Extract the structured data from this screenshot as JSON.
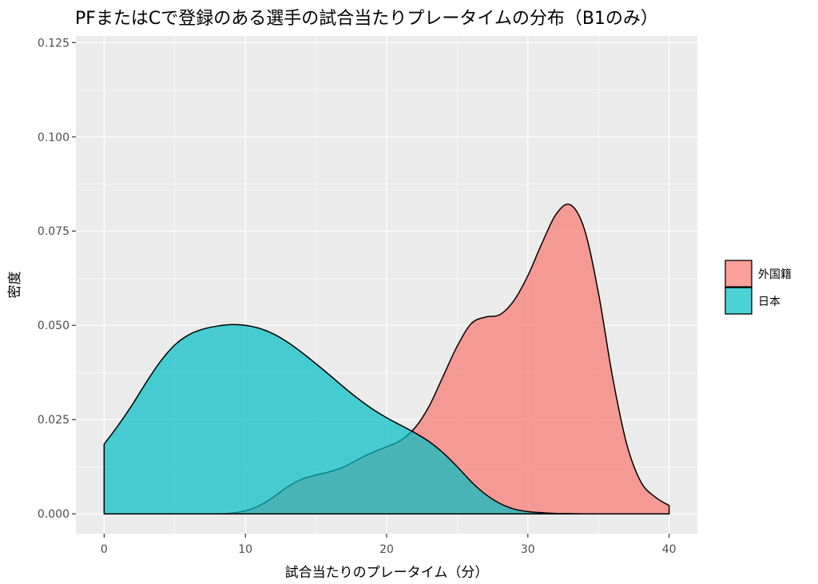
{
  "chart_data": {
    "type": "area",
    "title": "PFまたはCで登録のある選手の試合当たりプレータイムの分布（B1のみ）",
    "xlabel": "試合当たりのプレータイム（分）",
    "ylabel": "密度",
    "xlim": [
      -2,
      42
    ],
    "ylim": [
      -0.00525,
      0.12675
    ],
    "x_ticks": [
      0,
      10,
      20,
      30,
      40
    ],
    "x_tick_labels": [
      "0",
      "10",
      "20",
      "30",
      "40"
    ],
    "y_ticks": [
      0,
      0.025,
      0.05,
      0.075,
      0.1,
      0.125
    ],
    "y_tick_labels": [
      "0.000",
      "0.025",
      "0.050",
      "0.075",
      "0.100",
      "0.125"
    ],
    "grid": true,
    "legend_position": "right",
    "series": [
      {
        "name": "外国籍",
        "color": "#F8766D",
        "x": [
          0,
          5,
          8,
          9,
          10,
          11,
          12,
          13,
          14,
          15,
          16,
          17,
          18,
          19,
          20,
          21,
          22,
          23,
          24,
          25,
          26,
          27,
          28,
          29,
          30,
          31,
          32,
          33,
          34,
          35,
          36,
          37,
          38,
          39,
          40
        ],
        "y": [
          0,
          0,
          0,
          0.0002,
          0.0008,
          0.0022,
          0.0045,
          0.0072,
          0.0092,
          0.0103,
          0.0112,
          0.0125,
          0.0145,
          0.0163,
          0.0178,
          0.0195,
          0.0228,
          0.0285,
          0.0365,
          0.0445,
          0.0505,
          0.0522,
          0.0528,
          0.0565,
          0.0632,
          0.0718,
          0.0795,
          0.082,
          0.0755,
          0.0585,
          0.0362,
          0.0185,
          0.0085,
          0.0045,
          0.0022
        ]
      },
      {
        "name": "日本",
        "color": "#00BFC4",
        "x": [
          0,
          1,
          2,
          3,
          4,
          5,
          6,
          7,
          8,
          9,
          10,
          11,
          12,
          13,
          14,
          15,
          16,
          17,
          18,
          19,
          20,
          21,
          22,
          23,
          24,
          25,
          26,
          27,
          28,
          29,
          30,
          31,
          32,
          33,
          34,
          35,
          36,
          38,
          40
        ],
        "y": [
          0.0185,
          0.0235,
          0.029,
          0.035,
          0.0405,
          0.0448,
          0.0475,
          0.049,
          0.0498,
          0.0502,
          0.05,
          0.0492,
          0.0477,
          0.0455,
          0.0428,
          0.0398,
          0.0367,
          0.0335,
          0.0305,
          0.0278,
          0.0255,
          0.0235,
          0.0215,
          0.0192,
          0.0162,
          0.0125,
          0.0085,
          0.0052,
          0.0028,
          0.0013,
          0.0006,
          0.0003,
          0.0001,
          5e-05,
          0,
          0,
          0,
          0,
          0
        ]
      }
    ]
  }
}
